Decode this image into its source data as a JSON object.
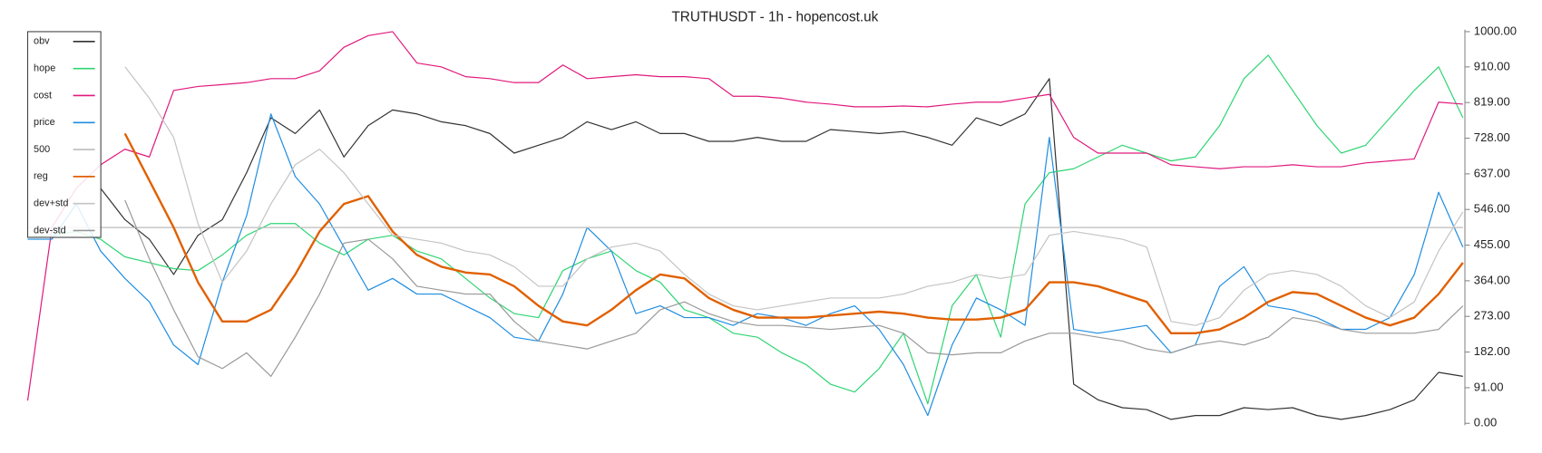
{
  "chart_data": {
    "type": "line",
    "title": "TRUTHUSDT - 1h - hopencost.uk",
    "ylim": [
      0,
      1000
    ],
    "yticks": [
      {
        "value": 0,
        "label": "0.00"
      },
      {
        "value": 91,
        "label": "91.00"
      },
      {
        "value": 182,
        "label": "182.00"
      },
      {
        "value": 273,
        "label": "273.00"
      },
      {
        "value": 364,
        "label": "364.00"
      },
      {
        "value": 455,
        "label": "455.00"
      },
      {
        "value": 546,
        "label": "546.00"
      },
      {
        "value": 637,
        "label": "637.00"
      },
      {
        "value": 728,
        "label": "728.00"
      },
      {
        "value": 819,
        "label": "819.00"
      },
      {
        "value": 910,
        "label": "910.00"
      },
      {
        "value": 1000,
        "label": "1000.00"
      }
    ],
    "legend": "upper left",
    "series": [
      {
        "name": "obv",
        "color": "#333333",
        "values": [
          null,
          null,
          null,
          600,
          520,
          470,
          380,
          480,
          520,
          640,
          780,
          740,
          800,
          680,
          760,
          800,
          790,
          770,
          760,
          740,
          690,
          710,
          730,
          770,
          750,
          770,
          740,
          740,
          720,
          720,
          730,
          720,
          720,
          750,
          745,
          740,
          745,
          730,
          710,
          780,
          760,
          790,
          880,
          100,
          60,
          40,
          35,
          10,
          20,
          20,
          40,
          35,
          40,
          20,
          10,
          20,
          35,
          60,
          130,
          120
        ]
      },
      {
        "name": "hope",
        "color": "#2ed573",
        "values": [
          475,
          480,
          490,
          470,
          425,
          410,
          395,
          390,
          430,
          480,
          510,
          510,
          460,
          430,
          470,
          480,
          440,
          420,
          370,
          320,
          280,
          270,
          390,
          420,
          440,
          390,
          360,
          290,
          270,
          230,
          220,
          180,
          150,
          100,
          80,
          140,
          230,
          50,
          300,
          380,
          220,
          560,
          640,
          650,
          680,
          710,
          690,
          670,
          680,
          760,
          880,
          940,
          850,
          760,
          690,
          710,
          780,
          850,
          910,
          780
        ]
      },
      {
        "name": "cost",
        "color": "#e0197d",
        "values": [
          58,
          500,
          600,
          660,
          700,
          680,
          850,
          860,
          865,
          870,
          880,
          880,
          900,
          960,
          990,
          1000,
          920,
          910,
          885,
          880,
          870,
          870,
          915,
          880,
          885,
          890,
          885,
          885,
          880,
          835,
          835,
          830,
          820,
          815,
          808,
          808,
          810,
          808,
          815,
          820,
          820,
          830,
          840,
          730,
          690,
          690,
          690,
          660,
          655,
          650,
          655,
          655,
          660,
          655,
          655,
          665,
          670,
          675,
          820,
          815
        ]
      },
      {
        "name": "price",
        "color": "#1f8de0",
        "values": [
          470,
          470,
          560,
          440,
          370,
          310,
          200,
          150,
          360,
          530,
          790,
          630,
          560,
          450,
          340,
          370,
          330,
          330,
          300,
          270,
          220,
          210,
          330,
          500,
          440,
          280,
          300,
          270,
          270,
          250,
          280,
          270,
          250,
          280,
          300,
          240,
          150,
          20,
          200,
          320,
          290,
          250,
          730,
          240,
          230,
          240,
          250,
          180,
          200,
          350,
          400,
          300,
          290,
          270,
          240,
          240,
          270,
          380,
          590,
          450
        ]
      },
      {
        "name": "500",
        "color": "#bbbbbb",
        "values": [
          500,
          500,
          500,
          500,
          500,
          500,
          500,
          500,
          500,
          500,
          500,
          500,
          500,
          500,
          500,
          500,
          500,
          500,
          500,
          500,
          500,
          500,
          500,
          500,
          500,
          500,
          500,
          500,
          500,
          500,
          500,
          500,
          500,
          500,
          500,
          500,
          500,
          500,
          500,
          500,
          500,
          500,
          500,
          500,
          500,
          500,
          500,
          500,
          500,
          500,
          500,
          500,
          500,
          500,
          500,
          500,
          500,
          500,
          500,
          500
        ]
      },
      {
        "name": "reg",
        "color": "#e06000",
        "values": [
          null,
          null,
          null,
          null,
          740,
          620,
          500,
          360,
          260,
          260,
          290,
          380,
          490,
          560,
          580,
          490,
          430,
          400,
          385,
          380,
          350,
          300,
          260,
          250,
          290,
          340,
          380,
          370,
          320,
          290,
          270,
          270,
          270,
          275,
          280,
          285,
          280,
          270,
          265,
          265,
          270,
          290,
          360,
          360,
          350,
          330,
          310,
          230,
          230,
          240,
          270,
          310,
          335,
          330,
          300,
          270,
          250,
          270,
          330,
          410
        ]
      },
      {
        "name": "dev+std",
        "color": "#c4c4c4",
        "values": [
          null,
          null,
          null,
          null,
          910,
          830,
          730,
          510,
          360,
          440,
          560,
          660,
          700,
          640,
          560,
          480,
          470,
          460,
          440,
          430,
          400,
          350,
          350,
          420,
          450,
          460,
          440,
          380,
          330,
          300,
          290,
          300,
          310,
          320,
          320,
          320,
          330,
          350,
          360,
          380,
          370,
          380,
          480,
          490,
          480,
          470,
          450,
          260,
          250,
          270,
          340,
          380,
          390,
          380,
          350,
          300,
          270,
          310,
          440,
          540
        ]
      },
      {
        "name": "dev-std",
        "color": "#999999",
        "values": [
          null,
          null,
          null,
          null,
          570,
          420,
          290,
          170,
          140,
          180,
          120,
          220,
          330,
          460,
          470,
          420,
          350,
          340,
          330,
          330,
          260,
          210,
          200,
          190,
          210,
          230,
          290,
          310,
          280,
          260,
          250,
          250,
          245,
          240,
          245,
          250,
          230,
          180,
          175,
          180,
          180,
          210,
          230,
          230,
          220,
          210,
          190,
          180,
          200,
          210,
          200,
          220,
          270,
          260,
          240,
          230,
          230,
          230,
          240,
          300
        ]
      }
    ]
  }
}
